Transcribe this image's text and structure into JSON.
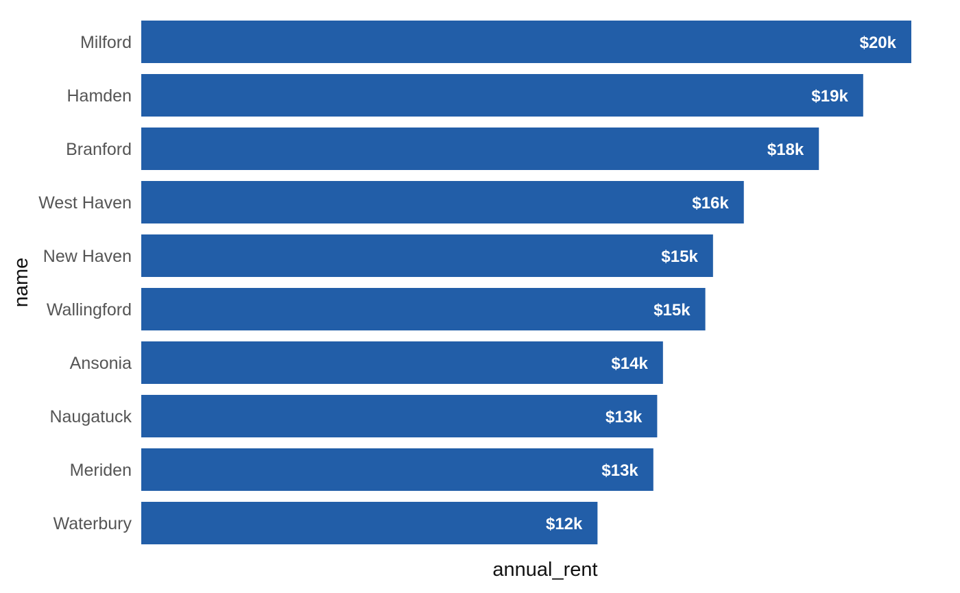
{
  "chart_data": {
    "type": "bar",
    "orientation": "horizontal",
    "categories": [
      "Milford",
      "Hamden",
      "Branford",
      "West Haven",
      "New Haven",
      "Wallingford",
      "Ansonia",
      "Naugatuck",
      "Meriden",
      "Waterbury"
    ],
    "values": [
      20000,
      18750,
      17600,
      15650,
      14850,
      14650,
      13550,
      13400,
      13300,
      11850
    ],
    "data_labels": [
      "$20k",
      "$19k",
      "$18k",
      "$16k",
      "$15k",
      "$15k",
      "$14k",
      "$13k",
      "$13k",
      "$12k"
    ],
    "title": "",
    "xlabel": "annual_rent",
    "ylabel": "name",
    "xlim": [
      0,
      20000
    ],
    "grid": false,
    "legend": "none",
    "bar_color": "#225EA8",
    "data_label_color": "#ffffff"
  }
}
